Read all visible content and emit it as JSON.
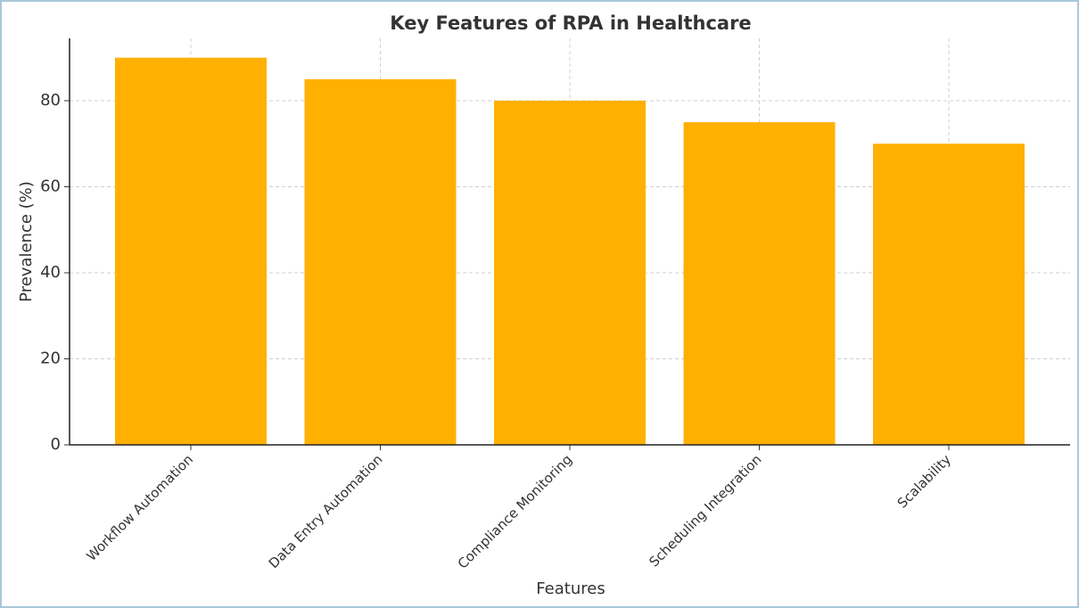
{
  "chart_data": {
    "type": "bar",
    "title": "Key Features of RPA in Healthcare",
    "x_label": "Features",
    "y_label": "Prevalence (%)",
    "categories": [
      "Workflow Automation",
      "Data Entry Automation",
      "Compliance Monitoring",
      "Scheduling Integration",
      "Scalability"
    ],
    "values": [
      90,
      85,
      80,
      75,
      70
    ],
    "color": "#ffb000",
    "ylim": [
      0,
      94.5
    ],
    "yticks": [
      0,
      20,
      40,
      60,
      80
    ],
    "grid": true
  }
}
